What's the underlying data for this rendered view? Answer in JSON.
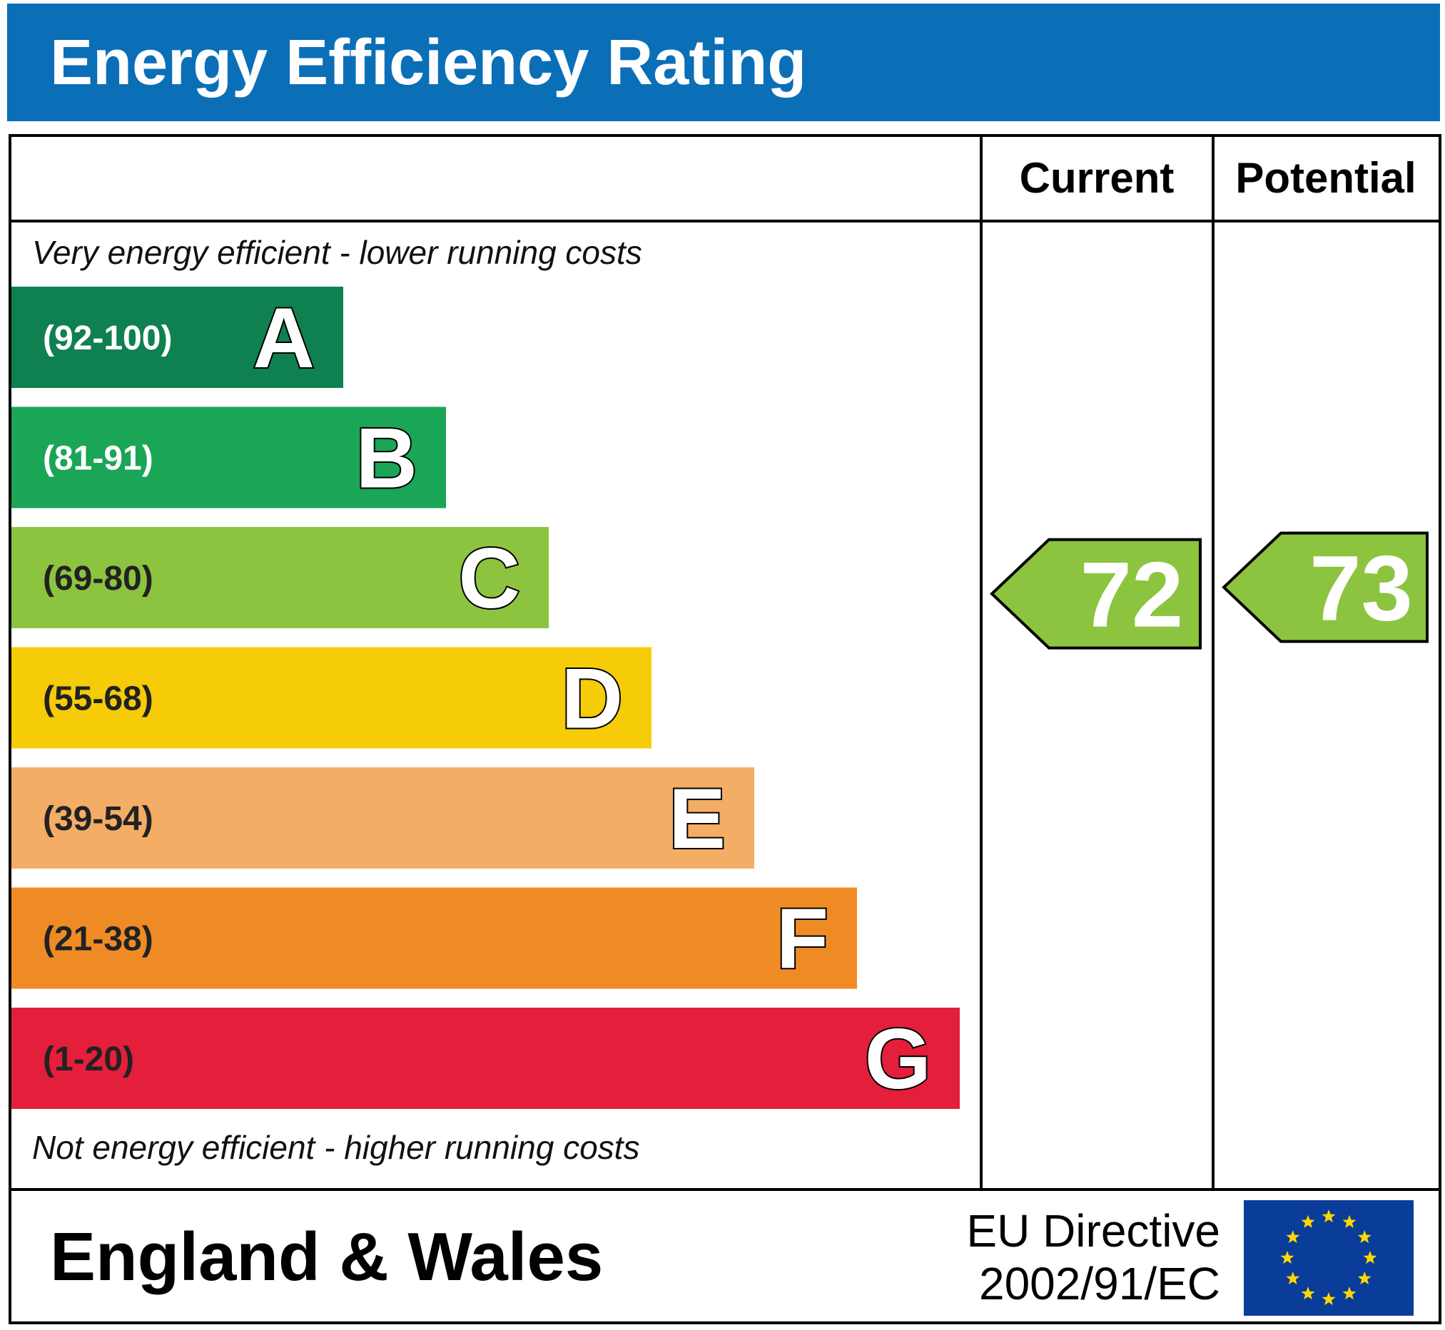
{
  "title": "Energy Efficiency Rating",
  "columns": {
    "current": "Current",
    "potential": "Potential"
  },
  "top_note": "Very energy efficient - lower running costs",
  "bottom_note": "Not energy efficient - higher running costs",
  "footer": {
    "region": "England & Wales",
    "directive_line1": "EU Directive",
    "directive_line2": "2002/91/EC"
  },
  "colors": {
    "title_bar": "#0b6fb8",
    "A": "#0f8050",
    "B": "#1aa557",
    "C": "#8cc43f",
    "D": "#f5cc07",
    "E": "#f3ad65",
    "F": "#ef8b25",
    "G": "#e31f3b",
    "eu_flag": "#0a3d99",
    "eu_star": "#ffd700"
  },
  "chart_data": {
    "type": "bar",
    "categories": [
      "A",
      "B",
      "C",
      "D",
      "E",
      "F",
      "G"
    ],
    "ranges": [
      "(92-100)",
      "(81-91)",
      "(69-80)",
      "(55-68)",
      "(39-54)",
      "(21-38)",
      "(1-20)"
    ],
    "bands": [
      {
        "letter": "A",
        "range": "(92-100)",
        "min": 92,
        "max": 100
      },
      {
        "letter": "B",
        "range": "(81-91)",
        "min": 81,
        "max": 91
      },
      {
        "letter": "C",
        "range": "(69-80)",
        "min": 69,
        "max": 80
      },
      {
        "letter": "D",
        "range": "(55-68)",
        "min": 55,
        "max": 68
      },
      {
        "letter": "E",
        "range": "(39-54)",
        "min": 39,
        "max": 54
      },
      {
        "letter": "F",
        "range": "(21-38)",
        "min": 21,
        "max": 38
      },
      {
        "letter": "G",
        "range": "(1-20)",
        "min": 1,
        "max": 20
      }
    ],
    "current": {
      "value": 72,
      "band": "C"
    },
    "potential": {
      "value": 73,
      "band": "C"
    }
  }
}
